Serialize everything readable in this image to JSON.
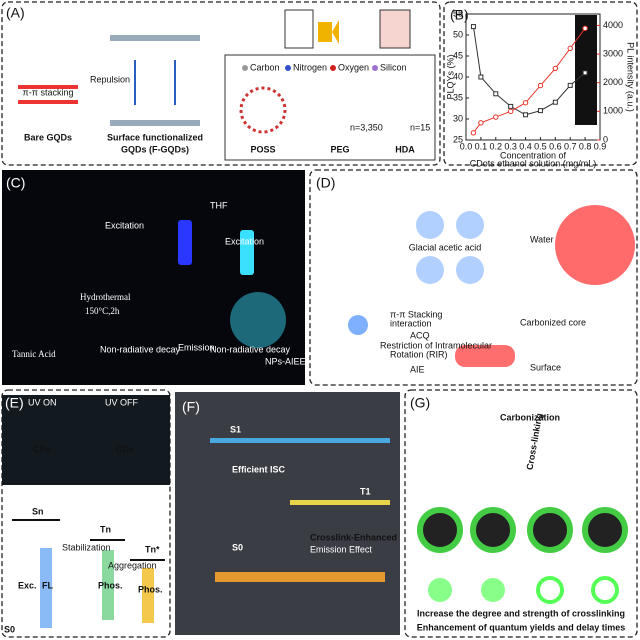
{
  "panels": {
    "A": {
      "label": "(A)",
      "stacking": "π-π stacking",
      "repulsion": "Repulsion",
      "bare": "Bare GQDs",
      "surface": [
        "Surface functionalized",
        "GQDs (F-GQDs)"
      ],
      "legend": [
        "Carbon",
        "Nitrogen",
        "Oxygen",
        "Silicon"
      ],
      "poss": "POSS",
      "peg": "PEG",
      "hda": "HDA",
      "peg_n": "n=3,350",
      "hda_n": "n=15"
    },
    "B": {
      "label": "(B)"
    },
    "C": {
      "label": "(C)",
      "excitation1": "Excitation",
      "thf": "THF",
      "excitation2": "Excitation",
      "hydrothermal": "Hydrothermal",
      "condition": "150°C,2h",
      "tannic": "Tannic Acid",
      "nonrad1": "Non-radiative decay",
      "emission": "Emission",
      "nonrad2": "Non-radiative decay",
      "nps": "NPs-AIEE"
    },
    "D": {
      "label": "(D)",
      "acid": "Glacial acetic acid",
      "water": "Water",
      "stacking": [
        "π-π Stacking",
        "interaction"
      ],
      "acq": "ACQ",
      "core": "Carbonized core",
      "rir": [
        "Restriction of Intramolecular",
        "Rotation (RIR)"
      ],
      "aie": "AIE",
      "surface": "Surface"
    },
    "E": {
      "label": "(E)",
      "uv_on": "UV ON",
      "uv_off": "UV OFF",
      "cds1": "CDs",
      "cds2": "CDs",
      "sn": "Sn",
      "tn": "Tn",
      "tn2": "Tn*",
      "stab": "Stabilization",
      "agg": "Aggregation",
      "exc": "Exc.",
      "fl": "FL",
      "phos1": "Phos.",
      "phos2": "Phos.",
      "s0": "S0"
    },
    "F": {
      "label": "(F)",
      "s1": "S1",
      "isc": "Efficient ISC",
      "t1": "T1",
      "s0": "S0",
      "cee": [
        "Crosslink-Enhanced",
        "Emission Effect"
      ]
    },
    "G": {
      "label": "(G)",
      "carb": "Carbonization",
      "cross": "Cross-linking",
      "increase": "Increase the degree and strength of crosslinking",
      "enhance": "Enhancement of quantum yields and delay times"
    }
  },
  "chart_data": {
    "type": "line",
    "x_label": [
      "Concentration of",
      "CDots ethanol solution (mg/mL)"
    ],
    "y_label": "PLQYs (%)",
    "y2_label": "PL intensity (a.u.)",
    "x": [
      0.05,
      0.1,
      0.2,
      0.3,
      0.4,
      0.5,
      0.6,
      0.7,
      0.8
    ],
    "series": [
      {
        "name": "PLQYs",
        "color": "#333333",
        "values": [
          52,
          40,
          36,
          33,
          31,
          32,
          34,
          38,
          41
        ]
      },
      {
        "name": "PL intensity",
        "color": "#e8322b",
        "axis": "y2",
        "values": [
          250,
          600,
          800,
          1000,
          1300,
          1900,
          2500,
          3200,
          3900
        ]
      }
    ],
    "xlim": [
      0,
      0.9
    ],
    "xticks": [
      {
        "value": 0,
        "label": "0.0"
      },
      0.1,
      0.2,
      0.3,
      0.4,
      0.5,
      0.6,
      0.7,
      0.8,
      0.9
    ],
    "ylim": [
      25,
      55
    ],
    "yticks": [
      25,
      30,
      35,
      40,
      45,
      50,
      55
    ],
    "y2lim": [
      0,
      4400
    ],
    "y2ticks": [
      0,
      1000,
      2000,
      3000,
      4000
    ]
  }
}
